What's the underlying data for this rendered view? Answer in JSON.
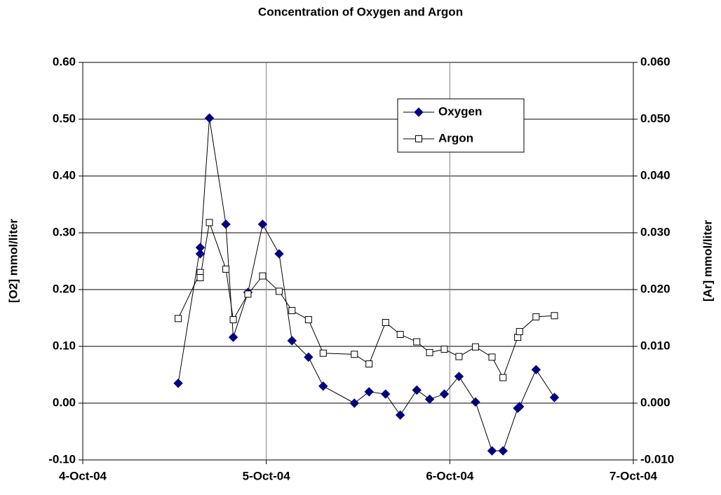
{
  "chart_data": {
    "type": "line",
    "title": "Concentration of Oxygen and Argon",
    "y_label": "[O2] mmol/liter",
    "y2_label": "[Ar] mmol/liter",
    "x": [
      38264.52,
      38264.64,
      38264.64,
      38264.69,
      38264.78,
      38264.82,
      38264.9,
      38264.98,
      38265.07,
      38265.14,
      38265.23,
      38265.31,
      38265.48,
      38265.56,
      38265.65,
      38265.73,
      38265.82,
      38265.89,
      38265.97,
      38266.05,
      38266.14,
      38266.23,
      38266.29,
      38266.37,
      38266.38,
      38266.47,
      38266.57
    ],
    "series": [
      {
        "name": "Oxygen",
        "color": "#000080",
        "marker": "diamond",
        "values": [
          0.035,
          0.274,
          0.263,
          0.502,
          0.315,
          0.116,
          0.195,
          0.315,
          0.263,
          0.11,
          0.081,
          0.03,
          0.0,
          0.02,
          0.016,
          -0.021,
          0.023,
          0.007,
          0.016,
          0.047,
          0.002,
          -0.084,
          -0.084,
          -0.009,
          -0.006,
          0.059,
          0.01
        ]
      },
      {
        "name": "Argon",
        "color": "#000000",
        "marker": "square",
        "axis": "y2",
        "values": [
          0.0149,
          0.023,
          0.0221,
          0.0318,
          0.0236,
          0.0147,
          0.0192,
          0.0224,
          0.0197,
          0.0163,
          0.0147,
          0.0088,
          0.0086,
          0.0069,
          0.0142,
          0.0121,
          0.0108,
          0.0089,
          0.0095,
          0.0082,
          0.0099,
          0.0081,
          0.0045,
          0.0116,
          0.0126,
          0.0152,
          0.0154
        ]
      }
    ],
    "xlim": [
      38264,
      38267
    ],
    "xticks": [
      {
        "value": 38264,
        "label": "4-Oct-04"
      },
      {
        "value": 38265,
        "label": "5-Oct-04"
      },
      {
        "value": 38266,
        "label": "6-Oct-04"
      },
      {
        "value": 38267,
        "label": "7-Oct-04"
      }
    ],
    "ylim": [
      -0.1,
      0.6
    ],
    "yticks": [
      {
        "value": -0.1,
        "label": "-0.10"
      },
      {
        "value": 0,
        "label": "0.00"
      },
      {
        "value": 0.1,
        "label": "0.10"
      },
      {
        "value": 0.2,
        "label": "0.20"
      },
      {
        "value": 0.3,
        "label": "0.30"
      },
      {
        "value": 0.4,
        "label": "0.40"
      },
      {
        "value": 0.5,
        "label": "0.50"
      },
      {
        "value": 0.6,
        "label": "0.60"
      }
    ],
    "y2lim": [
      -0.01,
      0.06
    ],
    "y2ticks": [
      {
        "value": -0.01,
        "label": "-0.010"
      },
      {
        "value": 0,
        "label": "0.000"
      },
      {
        "value": 0.01,
        "label": "0.010"
      },
      {
        "value": 0.02,
        "label": "0.020"
      },
      {
        "value": 0.03,
        "label": "0.030"
      },
      {
        "value": 0.04,
        "label": "0.040"
      },
      {
        "value": 0.05,
        "label": "0.050"
      },
      {
        "value": 0.06,
        "label": "0.060"
      }
    ],
    "grid": true,
    "legend": "top-right"
  }
}
